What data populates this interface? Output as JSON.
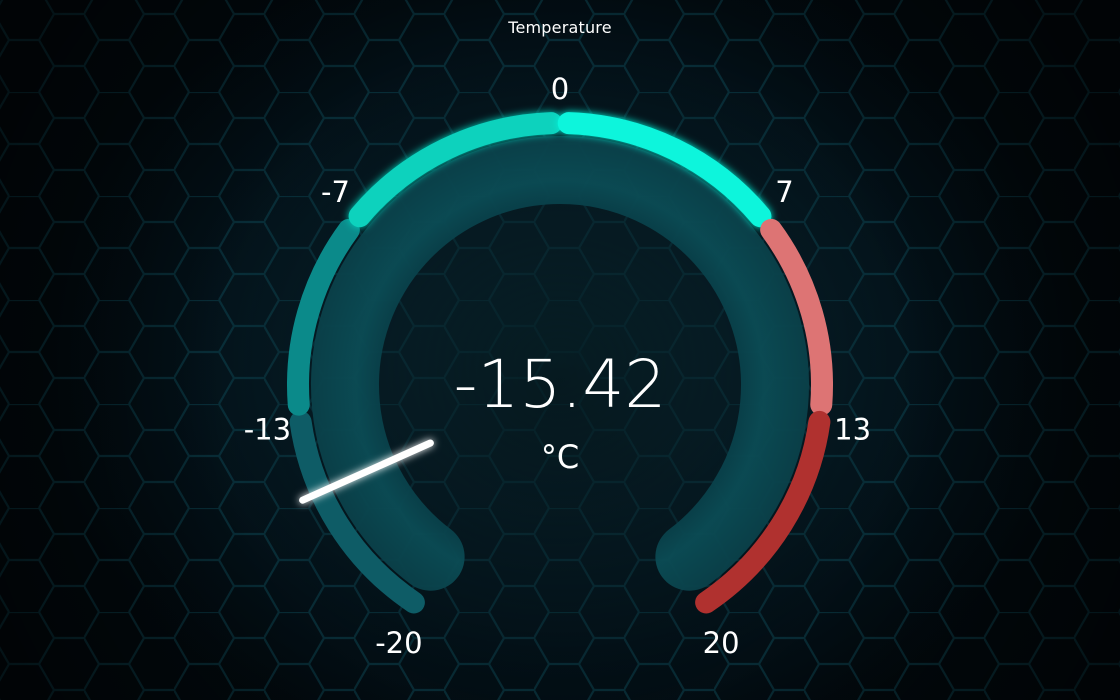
{
  "gauge": {
    "title": "Temperature",
    "value": -15.42,
    "value_text": "-15.42",
    "unit": "°C",
    "min": -20,
    "max": 20,
    "tick_labels": [
      "-20",
      "-13",
      "-7",
      "0",
      "7",
      "13",
      "20"
    ],
    "bands": [
      {
        "from": -20,
        "to": -13,
        "color": "#0e5c66"
      },
      {
        "from": -13,
        "to": -7,
        "color": "#0b8a8a"
      },
      {
        "from": -7,
        "to": 0,
        "color": "#08d2bd"
      },
      {
        "from": 0,
        "to": 7,
        "color": "#0af5dc"
      },
      {
        "from": 7,
        "to": 13,
        "color": "#dd7474"
      },
      {
        "from": 13,
        "to": 20,
        "color": "#b0312f"
      }
    ],
    "track_color": "#0b4a52",
    "needle_color": "#ffffff"
  }
}
